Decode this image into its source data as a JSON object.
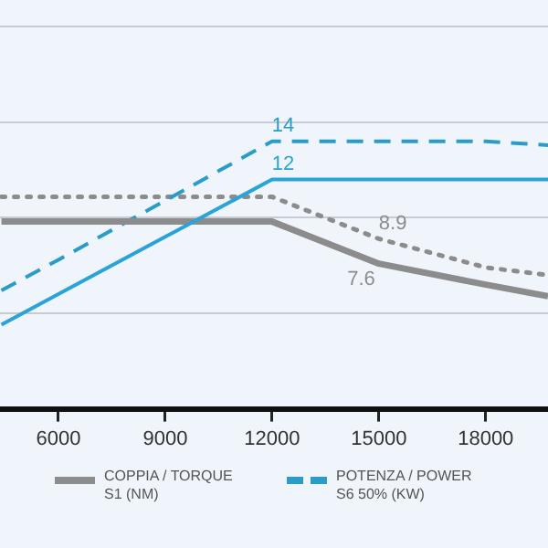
{
  "chart_data": {
    "type": "line",
    "x": [
      4400,
      6000,
      9000,
      12000,
      15000,
      18000,
      19750
    ],
    "series": [
      {
        "color": "#2aa3d8",
        "line_style": "solid",
        "values": [
          4.4,
          6.0,
          9.0,
          12,
          12,
          12,
          12
        ],
        "value_labels": [
          null,
          null,
          null,
          "12",
          null,
          null,
          null
        ]
      },
      {
        "name": "COPPIA / TORQUE S1 (NM)",
        "color": "#8c8c8c",
        "line_style": "solid",
        "values": [
          9.8,
          9.8,
          9.8,
          9.8,
          7.6,
          6.5,
          5.9
        ],
        "value_labels": [
          null,
          null,
          null,
          null,
          "7.6",
          null,
          null
        ]
      },
      {
        "name": "POTENZA / POWER S6 50% (KW)",
        "color": "#2a9cc8",
        "line_style": "dashed",
        "values": [
          6.2,
          7.8,
          10.9,
          14,
          14,
          14,
          13.8
        ],
        "value_labels": [
          null,
          null,
          null,
          "14",
          null,
          null,
          null
        ]
      },
      {
        "color": "#8c8c8c",
        "line_style": "dotted",
        "values": [
          11.1,
          11.1,
          11.1,
          11.1,
          8.9,
          7.4,
          7.0
        ],
        "value_labels": [
          null,
          null,
          null,
          null,
          "8.9",
          null,
          null
        ]
      }
    ],
    "xlim": [
      4360,
      19750
    ],
    "xticks": [
      6000,
      9000,
      12000,
      15000,
      18000
    ],
    "ylim": [
      0,
      21.4
    ],
    "yticks": [
      {
        "value": 5,
        "label": null
      },
      {
        "value": 10,
        "label": null
      },
      {
        "value": 15,
        "label": null
      },
      {
        "value": 20,
        "label": null
      }
    ],
    "tick_labels": "x",
    "grid": "y",
    "marker": "none",
    "legend": "bottom"
  }
}
